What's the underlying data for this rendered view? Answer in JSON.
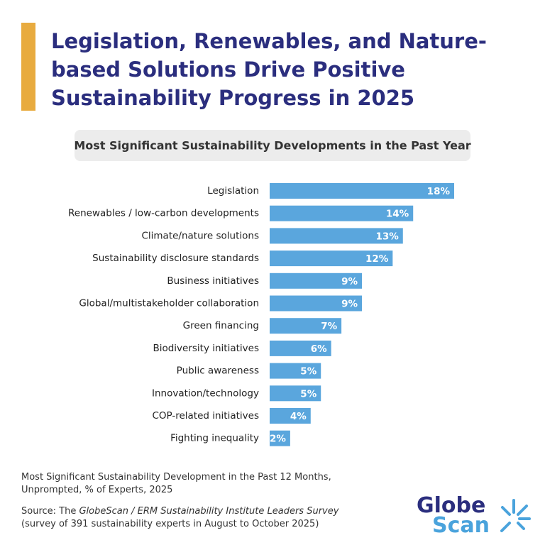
{
  "chart_data": {
    "type": "bar",
    "title_lines": [
      "Legislation, Renewables, and Nature-",
      "based Solutions Drive Positive",
      "Sustainability Progress in 2025"
    ],
    "subtitle": "Most Significant Sustainability Developments in the Past Year",
    "categories": [
      "Legislation",
      "Renewables / low-carbon developments",
      "Climate/nature solutions",
      "Sustainability disclosure standards",
      "Business initiatives",
      "Global/multistakeholder collaboration",
      "Green financing",
      "Biodiversity initiatives",
      "Public awareness",
      "Innovation/technology",
      "COP-related initiatives",
      "Fighting inequality"
    ],
    "values": [
      18,
      14,
      13,
      12,
      9,
      9,
      7,
      6,
      5,
      5,
      4,
      2
    ],
    "value_labels": [
      "18%",
      "14%",
      "13%",
      "12%",
      "9%",
      "9%",
      "7%",
      "6%",
      "5%",
      "5%",
      "4%",
      "2%"
    ],
    "color": "#5aa6dd",
    "note_lines": [
      "Most Significant Sustainability Development in the Past 12 Months,",
      "Unprompted, % of Experts, 2025"
    ],
    "source": {
      "prefix": "Source: The ",
      "italic": "GlobeScan / ERM Sustainability Institute Leaders Survey",
      "line2": "(survey of 391 sustainability experts in August to October 2025)"
    },
    "logo": {
      "line1": "Globe",
      "line2": "Scan"
    }
  }
}
